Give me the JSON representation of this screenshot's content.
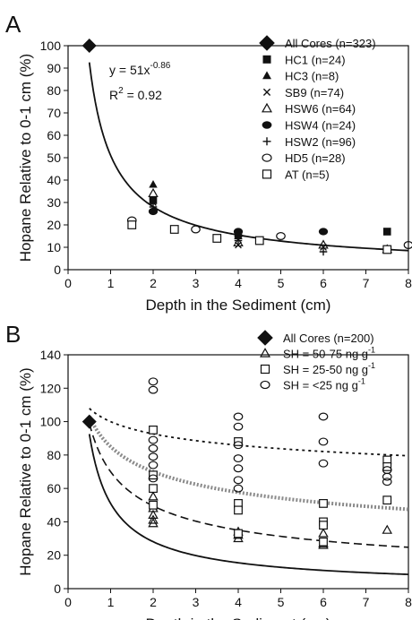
{
  "chart_data": [
    {
      "panel_label": "A",
      "type": "scatter",
      "xlabel": "Depth in the Sediment (cm)",
      "ylabel": "Hopane Relative to 0-1 cm (%)",
      "xlim": [
        0,
        8
      ],
      "ylim": [
        0,
        100
      ],
      "xticks": [
        0,
        1,
        2,
        3,
        4,
        5,
        6,
        7,
        8
      ],
      "yticks": [
        0,
        10,
        20,
        30,
        40,
        50,
        60,
        70,
        80,
        90,
        100
      ],
      "grid": false,
      "legend_position": "top-right",
      "annotations": [
        {
          "equation": "y = 51x",
          "exponent": "-0.86"
        },
        {
          "label": "R",
          "superscript": "2",
          "value": " = 0.92"
        }
      ],
      "series": [
        {
          "name": "All Cores (n=323)",
          "marker": "diamond-filled",
          "x": [
            0.5
          ],
          "y": [
            100
          ]
        },
        {
          "name": "HC1 (n=24)",
          "marker": "square-filled",
          "x": [
            2,
            4,
            7.5
          ],
          "y": [
            31,
            16,
            17
          ]
        },
        {
          "name": "HC3 (n=8)",
          "marker": "triangle-filled",
          "x": [
            2,
            4,
            7.5
          ],
          "y": [
            38,
            15,
            9
          ]
        },
        {
          "name": "SB9 (n=74)",
          "marker": "x",
          "x": [
            2,
            4,
            6
          ],
          "y": [
            30,
            11,
            10
          ]
        },
        {
          "name": "HSW6 (n=64)",
          "marker": "triangle-open",
          "x": [
            2,
            4,
            6,
            7.5
          ],
          "y": [
            34,
            12,
            11,
            9
          ]
        },
        {
          "name": "HSW4 (n=24)",
          "marker": "circle-filled",
          "x": [
            2,
            4,
            6
          ],
          "y": [
            26,
            17,
            17
          ]
        },
        {
          "name": "HSW2 (n=96)",
          "marker": "plus",
          "x": [
            2,
            4,
            6
          ],
          "y": [
            28,
            13,
            8
          ]
        },
        {
          "name": "HD5 (n=28)",
          "marker": "circle-open",
          "x": [
            1.5,
            3,
            5,
            8
          ],
          "y": [
            22,
            18,
            15,
            11
          ]
        },
        {
          "name": "AT (n=5)",
          "marker": "square-open",
          "x": [
            1.5,
            2.5,
            3.5,
            4.5,
            7.5
          ],
          "y": [
            20,
            18,
            14,
            13,
            9
          ]
        }
      ],
      "curves": [
        {
          "style": "solid",
          "a": 51,
          "b": -0.86,
          "x_from": 0.5,
          "x_to": 8
        }
      ]
    },
    {
      "panel_label": "B",
      "type": "scatter",
      "xlabel": "Depth in the Sediment (cm)",
      "ylabel": "Hopane Relative to 0-1 cm (%)",
      "xlim": [
        0,
        8
      ],
      "ylim": [
        0,
        140
      ],
      "xticks": [
        0,
        1,
        2,
        3,
        4,
        5,
        6,
        7,
        8
      ],
      "yticks": [
        0,
        20,
        40,
        60,
        80,
        100,
        120,
        140
      ],
      "grid": false,
      "legend_position": "top-right",
      "series": [
        {
          "name": "All Cores (n=200)",
          "marker": "diamond-filled",
          "x": [
            0.5
          ],
          "y": [
            100
          ]
        },
        {
          "name": "SH = 50-75 ng g",
          "superscript": "-1",
          "marker": "triangle-open",
          "x": [
            2,
            2,
            2,
            2,
            2,
            4,
            4,
            4,
            6,
            6,
            6,
            7.5
          ],
          "y": [
            55,
            48,
            44,
            41,
            39,
            34,
            32,
            30,
            33,
            27,
            26,
            35
          ]
        },
        {
          "name": "SH = 25-50 ng g",
          "superscript": "-1",
          "marker": "square-open",
          "x": [
            2,
            2,
            2,
            2,
            4,
            4,
            4,
            4,
            6,
            6,
            6,
            6,
            7.5,
            7.5,
            7.5
          ],
          "y": [
            95,
            68,
            60,
            50,
            88,
            51,
            47,
            33,
            51,
            40,
            38,
            28,
            77,
            73,
            53
          ]
        },
        {
          "name": "SH = <25 ng g",
          "superscript": "-1",
          "marker": "circle-open",
          "x": [
            2,
            2,
            2,
            2,
            2,
            2,
            2,
            4,
            4,
            4,
            4,
            4,
            4,
            4,
            6,
            6,
            6,
            7.5,
            7.5,
            7.5
          ],
          "y": [
            124,
            119,
            89,
            84,
            79,
            74,
            66,
            103,
            97,
            86,
            78,
            72,
            65,
            60,
            103,
            88,
            75,
            71,
            67,
            64
          ]
        }
      ],
      "curves": [
        {
          "style": "solid",
          "a": 51,
          "b": -0.86,
          "x_from": 0.5,
          "x_to": 8
        },
        {
          "style": "dashed",
          "a": 70,
          "b": -0.5,
          "x_from": 0.5,
          "x_to": 8
        },
        {
          "style": "dotted-thick",
          "a": 85,
          "b": -0.28,
          "x_from": 0.5,
          "x_to": 8
        },
        {
          "style": "dotted",
          "a": 100,
          "b": -0.11,
          "x_from": 0.5,
          "x_to": 8
        }
      ]
    }
  ]
}
